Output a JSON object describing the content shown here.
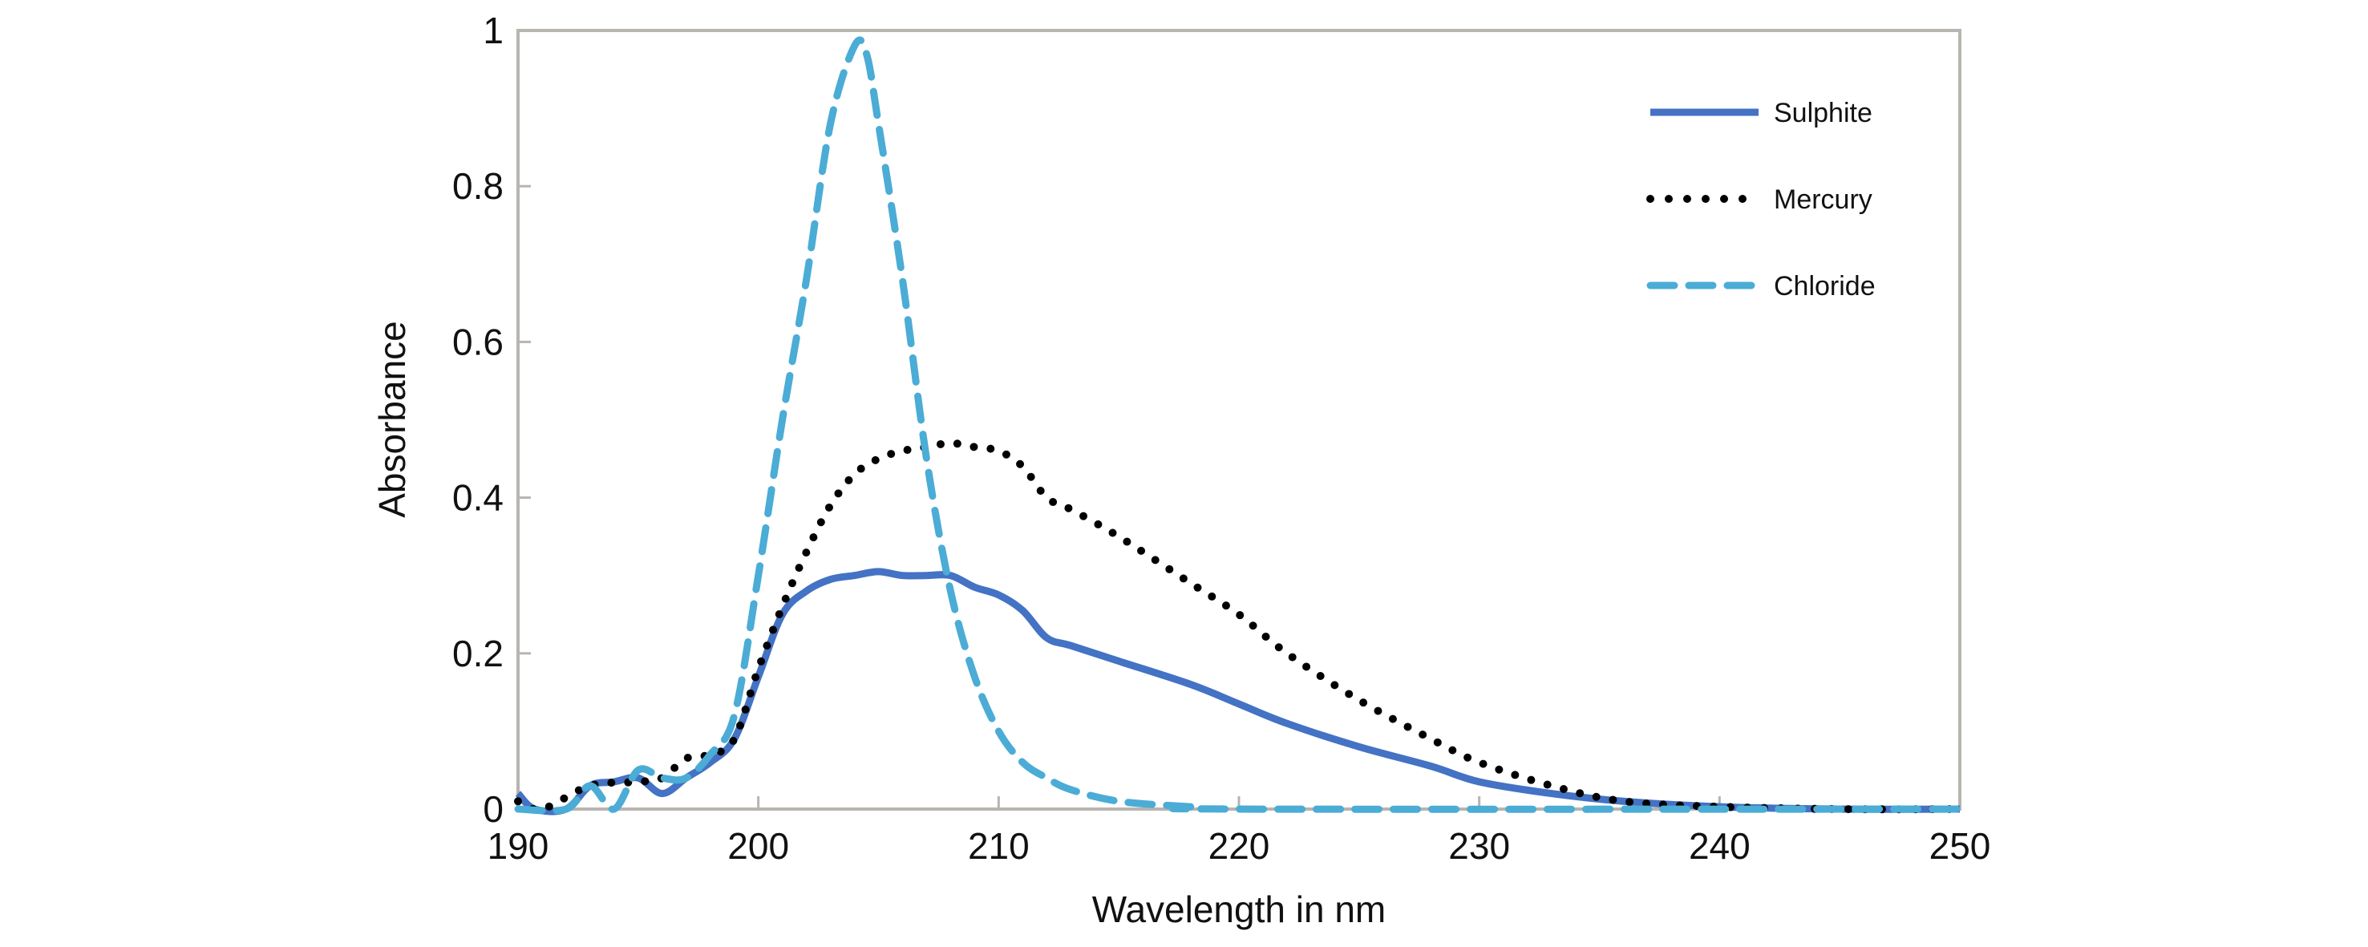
{
  "chart_data": {
    "type": "line",
    "title": "",
    "xlabel": "Wavelength in nm",
    "ylabel": "Absorbance",
    "xlim": [
      190,
      250
    ],
    "ylim": [
      0,
      1
    ],
    "xticks": [
      190,
      200,
      210,
      220,
      230,
      240,
      250
    ],
    "yticks": [
      0,
      0.2,
      0.4,
      0.6,
      0.8,
      1
    ],
    "ytick_labels": [
      "0",
      "0.2",
      "0.4",
      "0.6",
      "0.8",
      "1"
    ],
    "grid": false,
    "legend_position": "top-right",
    "series": [
      {
        "name": "Sulphite",
        "color": "#4472c4",
        "style": "solid",
        "x": [
          190,
          190.7,
          192,
          193,
          194,
          195,
          196,
          197,
          198,
          199,
          200,
          201,
          202,
          203,
          204,
          205,
          206,
          207,
          208,
          209,
          210,
          211,
          212,
          213,
          215,
          218,
          220,
          222,
          225,
          228,
          230,
          233,
          236,
          240,
          245,
          250
        ],
        "y": [
          0.02,
          0,
          0,
          0.03,
          0.035,
          0.04,
          0.02,
          0.04,
          0.06,
          0.09,
          0.17,
          0.25,
          0.28,
          0.295,
          0.3,
          0.305,
          0.3,
          0.3,
          0.3,
          0.285,
          0.275,
          0.255,
          0.22,
          0.21,
          0.19,
          0.16,
          0.135,
          0.11,
          0.08,
          0.055,
          0.035,
          0.02,
          0.01,
          0.003,
          0,
          0
        ]
      },
      {
        "name": "Mercury",
        "color": "#000000",
        "style": "dotted",
        "x": [
          190,
          191,
          193,
          195,
          196,
          197,
          198,
          199,
          200,
          201,
          202,
          203,
          204,
          205,
          206,
          207,
          208,
          209,
          210,
          211,
          212,
          213,
          215,
          218,
          220,
          222,
          225,
          228,
          230,
          233,
          236,
          240,
          245,
          250
        ],
        "y": [
          0.01,
          0,
          0.03,
          0.035,
          0.04,
          0.065,
          0.07,
          0.09,
          0.18,
          0.26,
          0.33,
          0.39,
          0.43,
          0.45,
          0.46,
          0.465,
          0.47,
          0.465,
          0.46,
          0.44,
          0.4,
          0.385,
          0.35,
          0.29,
          0.25,
          0.2,
          0.14,
          0.09,
          0.06,
          0.03,
          0.01,
          0.003,
          0,
          0
        ]
      },
      {
        "name": "Chloride",
        "color": "#4bacd6",
        "style": "dashed",
        "x": [
          190,
          192,
          193,
          194,
          195,
          196,
          197,
          198,
          199,
          200,
          201,
          202,
          203,
          204,
          204.5,
          205,
          206,
          207,
          208,
          209,
          210,
          211,
          212,
          213,
          215,
          218,
          220,
          250
        ],
        "y": [
          0,
          0,
          0.03,
          0,
          0.05,
          0.04,
          0.04,
          0.07,
          0.12,
          0.3,
          0.5,
          0.68,
          0.88,
          0.98,
          0.97,
          0.88,
          0.68,
          0.45,
          0.28,
          0.17,
          0.1,
          0.06,
          0.04,
          0.025,
          0.01,
          0.003,
          0,
          0
        ]
      }
    ]
  }
}
